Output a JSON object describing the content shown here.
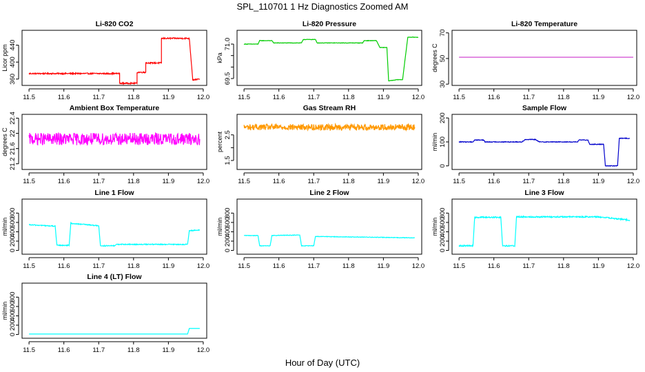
{
  "figure": {
    "title": "SPL_110701  1 Hz Diagnostics Zoomed AM",
    "xlabel": "Hour of Day (UTC)"
  },
  "chart_data": [
    {
      "type": "line",
      "title": "Li-820 CO2",
      "ylabel": "Licor ppm",
      "color": "#ff0000",
      "xlim": [
        11.48,
        12.01
      ],
      "ylim": [
        345,
        475
      ],
      "xticks": [
        11.5,
        11.6,
        11.7,
        11.8,
        11.9,
        12.0
      ],
      "yticks": [
        360,
        400,
        440
      ],
      "noise": 1.5,
      "x": [
        11.5,
        11.76,
        11.76,
        11.81,
        11.81,
        11.835,
        11.835,
        11.88,
        11.88,
        11.96,
        11.97,
        11.99
      ],
      "y": [
        373,
        373,
        350,
        350,
        376,
        376,
        398,
        398,
        456,
        456,
        358,
        360
      ]
    },
    {
      "type": "line",
      "title": "Li-820 Pressure",
      "ylabel": "kPa",
      "color": "#00cc00",
      "xlim": [
        11.48,
        12.01
      ],
      "ylim": [
        69.2,
        71.6
      ],
      "xticks": [
        11.5,
        11.6,
        11.7,
        11.8,
        11.9,
        12.0
      ],
      "yticks": [
        69.5,
        70.0,
        70.5,
        71.0
      ],
      "yticklabels": [
        "69.5",
        "",
        "",
        "71.0"
      ],
      "noise": 0.01,
      "x": [
        11.5,
        11.54,
        11.545,
        11.58,
        11.585,
        11.665,
        11.67,
        11.705,
        11.71,
        11.84,
        11.845,
        11.88,
        11.89,
        11.91,
        11.915,
        11.94,
        11.955,
        11.97,
        11.98,
        12.0
      ],
      "y": [
        71.0,
        71.0,
        71.15,
        71.15,
        71.05,
        71.05,
        71.2,
        71.2,
        71.05,
        71.05,
        71.15,
        71.15,
        70.85,
        70.85,
        69.4,
        69.45,
        69.45,
        71.3,
        71.3,
        71.3
      ]
    },
    {
      "type": "line",
      "title": "Li-820 Temperature",
      "ylabel": "degrees C",
      "color": "#cc33cc",
      "xlim": [
        11.48,
        12.01
      ],
      "ylim": [
        29,
        72
      ],
      "xticks": [
        11.5,
        11.6,
        11.7,
        11.8,
        11.9,
        12.0
      ],
      "yticks": [
        30,
        50,
        70
      ],
      "noise": 0,
      "x": [
        11.5,
        12.0
      ],
      "y": [
        51,
        51
      ]
    },
    {
      "type": "line",
      "title": "Ambient Box Temperature",
      "ylabel": "degrees C",
      "color": "#ff00ff",
      "xlim": [
        11.48,
        12.01
      ],
      "ylim": [
        21.05,
        22.5
      ],
      "xticks": [
        11.5,
        11.6,
        11.7,
        11.8,
        11.9,
        12.0
      ],
      "yticks": [
        21.2,
        21.6,
        22.0,
        22.4
      ],
      "noise": 0.16,
      "x": [
        11.5,
        11.99
      ],
      "y": [
        21.85,
        21.85
      ]
    },
    {
      "type": "line",
      "title": "Gas Stream RH",
      "ylabel": "percent",
      "color": "#ff9900",
      "xlim": [
        11.48,
        12.01
      ],
      "ylim": [
        1.15,
        3.3
      ],
      "xticks": [
        11.5,
        11.6,
        11.7,
        11.8,
        11.9,
        12.0
      ],
      "yticks": [
        1.5,
        2.0,
        2.5
      ],
      "yticklabels": [
        "1.5",
        "",
        "2.5"
      ],
      "noise": 0.12,
      "x": [
        11.5,
        11.99
      ],
      "y": [
        2.8,
        2.8
      ]
    },
    {
      "type": "line",
      "title": "Sample Flow",
      "ylabel": "ml/min",
      "color": "#0000cc",
      "xlim": [
        11.48,
        12.01
      ],
      "ylim": [
        -15,
        215
      ],
      "xticks": [
        11.5,
        11.6,
        11.7,
        11.8,
        11.9,
        12.0
      ],
      "yticks": [
        0,
        100,
        200
      ],
      "noise": 1.5,
      "x": [
        11.5,
        11.54,
        11.545,
        11.57,
        11.575,
        11.68,
        11.69,
        11.72,
        11.73,
        11.84,
        11.845,
        11.87,
        11.875,
        11.915,
        11.92,
        11.955,
        11.96,
        11.99
      ],
      "y": [
        100,
        100,
        108,
        108,
        100,
        100,
        110,
        110,
        100,
        100,
        108,
        108,
        90,
        90,
        0,
        0,
        115,
        115
      ]
    },
    {
      "type": "line",
      "title": "Line 1 Flow",
      "ylabel": "ml/min",
      "color": "#00ffff",
      "xlim": [
        11.48,
        12.01
      ],
      "ylim": [
        -80,
        1100
      ],
      "xticks": [
        11.5,
        11.6,
        11.7,
        11.8,
        11.9,
        12.0
      ],
      "yticks": [
        0,
        200,
        400,
        600,
        800
      ],
      "noise": 10,
      "x": [
        11.5,
        11.575,
        11.58,
        11.615,
        11.62,
        11.7,
        11.705,
        11.745,
        11.75,
        11.955,
        11.96,
        11.99
      ],
      "y": [
        550,
        520,
        110,
        110,
        580,
        530,
        100,
        100,
        130,
        130,
        420,
        440
      ]
    },
    {
      "type": "line",
      "title": "Line 2 Flow",
      "ylabel": "ml/min",
      "color": "#00ffff",
      "xlim": [
        11.48,
        12.01
      ],
      "ylim": [
        -80,
        1100
      ],
      "xticks": [
        11.5,
        11.6,
        11.7,
        11.8,
        11.9,
        12.0
      ],
      "yticks": [
        0,
        200,
        400,
        600,
        800
      ],
      "noise": 6,
      "x": [
        11.5,
        11.54,
        11.545,
        11.575,
        11.58,
        11.66,
        11.665,
        11.7,
        11.705,
        11.99
      ],
      "y": [
        320,
        320,
        100,
        100,
        320,
        330,
        100,
        100,
        300,
        270
      ]
    },
    {
      "type": "line",
      "title": "Line 3 Flow",
      "ylabel": "ml/min",
      "color": "#00ffff",
      "xlim": [
        11.48,
        12.01
      ],
      "ylim": [
        -80,
        1100
      ],
      "xticks": [
        11.5,
        11.6,
        11.7,
        11.8,
        11.9,
        12.0
      ],
      "yticks": [
        0,
        200,
        400,
        600,
        800
      ],
      "noise": 14,
      "x": [
        11.5,
        11.54,
        11.545,
        11.62,
        11.625,
        11.66,
        11.665,
        11.9,
        11.99
      ],
      "y": [
        100,
        100,
        710,
        710,
        100,
        100,
        720,
        720,
        650
      ]
    },
    {
      "type": "line",
      "title": "Line 4 (LT) Flow",
      "ylabel": "ml/min",
      "color": "#00ffff",
      "xlim": [
        11.48,
        12.01
      ],
      "ylim": [
        -80,
        1100
      ],
      "xticks": [
        11.5,
        11.6,
        11.7,
        11.8,
        11.9,
        12.0
      ],
      "yticks": [
        0,
        200,
        400,
        600,
        800
      ],
      "noise": 0,
      "x": [
        11.5,
        11.955,
        11.96,
        11.99
      ],
      "y": [
        10,
        10,
        130,
        130
      ]
    }
  ]
}
